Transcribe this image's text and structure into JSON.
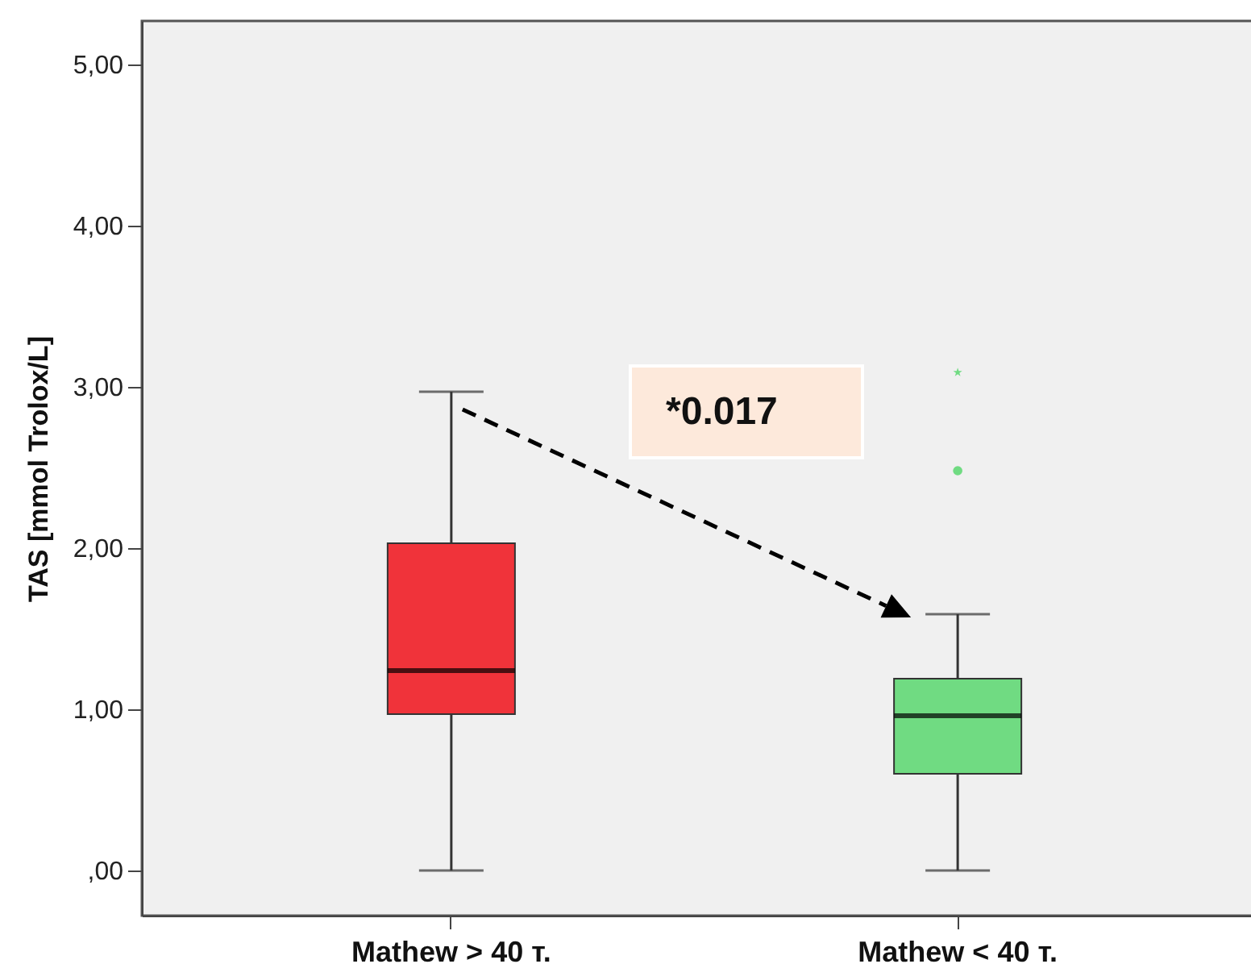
{
  "chart_data": {
    "type": "box",
    "ylabel": "TAS [mmol Trolox/L]",
    "categories": [
      "Mathew > 40 т.",
      "Mathew < 40 т."
    ],
    "boxes": [
      {
        "low": 0,
        "q1": 0.97,
        "median": 1.24,
        "q3": 2.03,
        "high": 2.97
      },
      {
        "low": 0,
        "q1": 0.6,
        "median": 0.96,
        "q3": 1.19,
        "high": 1.59,
        "outliers": [
          2.48,
          3.09
        ]
      }
    ],
    "colors": [
      "#f0333a",
      "#70db82"
    ],
    "ylim": [
      -0.28,
      5.27
    ],
    "yticks": [
      {
        "value": 0,
        "label": ",00"
      },
      {
        "value": 1,
        "label": "1,00"
      },
      {
        "value": 2,
        "label": "2,00"
      },
      {
        "value": 3,
        "label": "3,00"
      },
      {
        "value": 4,
        "label": "4,00"
      },
      {
        "value": 5,
        "label": "5,00"
      }
    ],
    "annotations": [
      "*0.017"
    ]
  }
}
